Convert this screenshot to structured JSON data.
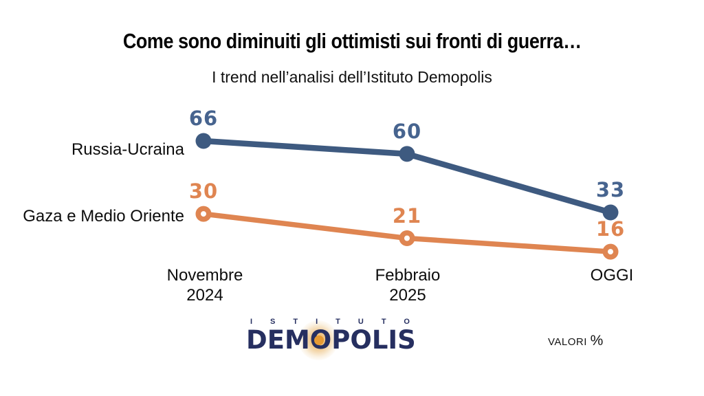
{
  "title": "Come sono diminuiti gli ottimisti sui fronti di guerra…",
  "subtitle": "I trend nell’analisi dell’Istituto Demopolis",
  "chart_data": {
    "type": "line",
    "categories": [
      "Novembre 2024",
      "Febbraio 2025",
      "OGGI"
    ],
    "categories_lines": [
      [
        "Novembre",
        "2024"
      ],
      [
        "Febbraio",
        "2025"
      ],
      [
        "OGGI",
        ""
      ]
    ],
    "series": [
      {
        "name": "Russia-Ucraina",
        "values": [
          66,
          60,
          33
        ],
        "color": "#3e5a80",
        "label_color": "#47648f",
        "marker": "filled"
      },
      {
        "name": "Gaza e Medio Oriente",
        "values": [
          30,
          21,
          16
        ],
        "color": "#df8551",
        "label_color": "#df8551",
        "marker": "ring"
      }
    ],
    "value_labels": true,
    "grid": false,
    "legend_position": "left-of-lines",
    "ylim": [
      0,
      80
    ]
  },
  "footer": {
    "logo_istituto": "ISTITUTO",
    "logo_demopolis": "DEMOPOLIS",
    "note": "VALORI ",
    "note_symbol": "%"
  },
  "colors": {
    "background": "#ffffff",
    "title_text": "#050505",
    "body_text": "#0d0d0d",
    "blue_series": "#3e5a80",
    "orange_series": "#df8551",
    "logo_navy": "#262f60",
    "logo_glow": "#e69a33"
  }
}
